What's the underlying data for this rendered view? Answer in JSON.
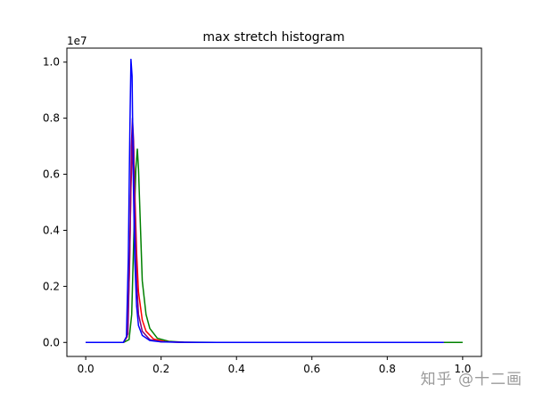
{
  "chart_data": {
    "type": "line",
    "title": "max stretch histogram",
    "xlabel": "",
    "ylabel": "",
    "y_offset_label": "1e7",
    "xlim": [
      -0.05,
      1.05
    ],
    "ylim": [
      -0.05,
      1.05
    ],
    "x_ticks": [
      0.0,
      0.2,
      0.4,
      0.6,
      0.8,
      1.0
    ],
    "x_tick_labels": [
      "0.0",
      "0.2",
      "0.4",
      "0.6",
      "0.8",
      "1.0"
    ],
    "y_ticks": [
      0.0,
      0.2,
      0.4,
      0.6,
      0.8,
      1.0
    ],
    "y_tick_labels": [
      "0.0",
      "0.2",
      "0.4",
      "0.6",
      "0.8",
      "1.0"
    ],
    "grid": false,
    "series": [
      {
        "color": "#008000",
        "x": [
          0.0,
          0.1,
          0.115,
          0.122,
          0.128,
          0.133,
          0.137,
          0.14,
          0.145,
          0.15,
          0.16,
          0.17,
          0.19,
          0.22,
          0.26,
          0.35,
          0.5,
          0.7,
          0.9,
          1.0
        ],
        "y": [
          0.0,
          0.0,
          0.01,
          0.1,
          0.4,
          0.62,
          0.69,
          0.62,
          0.42,
          0.22,
          0.1,
          0.05,
          0.015,
          0.004,
          0.001,
          0.0,
          0.0,
          0.0,
          0.0,
          0.0
        ]
      },
      {
        "color": "#ff0000",
        "x": [
          0.0,
          0.1,
          0.11,
          0.116,
          0.12,
          0.124,
          0.127,
          0.13,
          0.135,
          0.14,
          0.15,
          0.16,
          0.18,
          0.21,
          0.25,
          0.35,
          0.5,
          0.7,
          0.9,
          0.95
        ],
        "y": [
          0.0,
          0.0,
          0.02,
          0.25,
          0.55,
          0.72,
          0.7,
          0.55,
          0.32,
          0.18,
          0.08,
          0.04,
          0.012,
          0.003,
          0.0005,
          0.0,
          0.0,
          0.0,
          0.0,
          0.0
        ]
      },
      {
        "color": "#800080",
        "x": [
          0.0,
          0.1,
          0.112,
          0.118,
          0.121,
          0.124,
          0.127,
          0.13,
          0.135,
          0.14,
          0.15,
          0.17,
          0.2,
          0.3,
          0.5,
          0.7,
          0.9,
          0.95
        ],
        "y": [
          0.0,
          0.0,
          0.03,
          0.4,
          0.7,
          0.8,
          0.72,
          0.5,
          0.22,
          0.1,
          0.04,
          0.01,
          0.002,
          0.0,
          0.0,
          0.0,
          0.0,
          0.0
        ]
      },
      {
        "color": "#0000ff",
        "x": [
          0.0,
          0.1,
          0.108,
          0.113,
          0.117,
          0.12,
          0.123,
          0.126,
          0.13,
          0.135,
          0.14,
          0.15,
          0.17,
          0.2,
          0.25,
          0.35,
          0.5,
          0.7,
          0.9,
          0.95
        ],
        "y": [
          0.0,
          0.0,
          0.02,
          0.3,
          0.75,
          1.01,
          0.95,
          0.6,
          0.3,
          0.13,
          0.06,
          0.025,
          0.007,
          0.002,
          0.0005,
          0.0,
          0.0,
          0.0,
          0.0,
          0.0
        ]
      }
    ]
  },
  "watermark": "知乎 @十二画"
}
